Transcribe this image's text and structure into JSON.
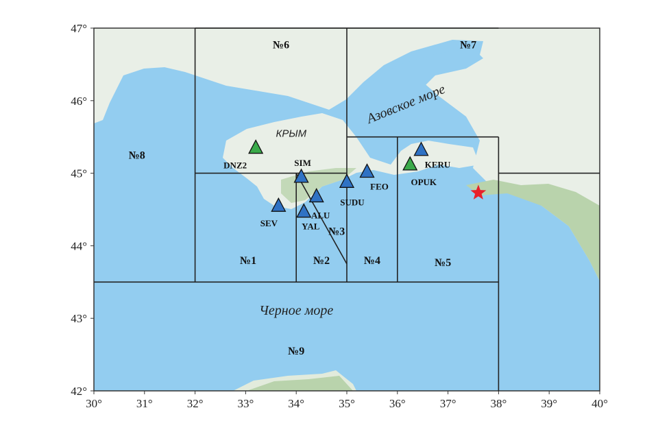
{
  "map": {
    "lon_range": [
      30,
      40
    ],
    "lat_range": [
      42,
      47
    ],
    "x_ticks": [
      "30°",
      "31°",
      "32°",
      "33°",
      "34°",
      "35°",
      "36°",
      "37°",
      "38°",
      "39°",
      "40°"
    ],
    "y_ticks": [
      "47°",
      "46°",
      "45°",
      "44°",
      "43°",
      "42°"
    ],
    "colors": {
      "water": "#93cdf0",
      "land": "#e9efe7",
      "mountains": "#b9d3ac",
      "station_blue": "#2f72c4",
      "station_green": "#3aaa4a",
      "epicenter": "#e8202a",
      "lines": "#222222"
    },
    "sea_labels": [
      {
        "text": "Азовское море",
        "lon": 36.2,
        "lat": 45.9,
        "rotate": -22
      },
      {
        "text": "Черное море",
        "lon": 34.0,
        "lat": 43.05,
        "rotate": 0
      }
    ],
    "region_label": {
      "text": "КРЫМ",
      "lon": 33.9,
      "lat": 45.5
    },
    "zones": [
      {
        "label": "№1",
        "lon": 33.05,
        "lat": 43.75
      },
      {
        "label": "№2",
        "lon": 34.5,
        "lat": 43.75
      },
      {
        "label": "№3",
        "lon": 34.8,
        "lat": 44.15
      },
      {
        "label": "№4",
        "lon": 35.5,
        "lat": 43.75
      },
      {
        "label": "№5",
        "lon": 36.9,
        "lat": 43.72
      },
      {
        "label": "№6",
        "lon": 33.7,
        "lat": 46.72
      },
      {
        "label": "№7",
        "lon": 37.4,
        "lat": 46.72
      },
      {
        "label": "№8",
        "lon": 30.85,
        "lat": 45.2
      },
      {
        "label": "№9",
        "lon": 34.0,
        "lat": 42.5
      }
    ],
    "zone_boundaries": [
      [
        [
          32,
          47
        ],
        [
          32,
          43.5
        ]
      ],
      [
        [
          35,
          47
        ],
        [
          35,
          43.5
        ]
      ],
      [
        [
          30,
          43.5
        ],
        [
          38,
          43.5
        ]
      ],
      [
        [
          32,
          45
        ],
        [
          35,
          45
        ]
      ],
      [
        [
          34,
          45
        ],
        [
          34,
          43.5
        ]
      ],
      [
        [
          34,
          45
        ],
        [
          35,
          43.75
        ]
      ],
      [
        [
          35,
          45.5
        ],
        [
          38,
          45.5
        ]
      ],
      [
        [
          36,
          45.5
        ],
        [
          36,
          43.5
        ]
      ],
      [
        [
          38,
          45.5
        ],
        [
          38,
          42
        ]
      ],
      [
        [
          38,
          45
        ],
        [
          40,
          45
        ]
      ],
      [
        [
          32,
          47
        ],
        [
          38,
          47
        ]
      ]
    ],
    "stations": [
      {
        "code": "DNZ2",
        "lon": 33.2,
        "lat": 45.35,
        "type": "green",
        "label_dx": -30,
        "label_dy": 30
      },
      {
        "code": "SIM",
        "lon": 34.1,
        "lat": 44.95,
        "type": "blue",
        "label_dx": 2,
        "label_dy": -16
      },
      {
        "code": "SEV",
        "lon": 33.65,
        "lat": 44.55,
        "type": "blue",
        "label_dx": -14,
        "label_dy": 30
      },
      {
        "code": "YAL",
        "lon": 34.15,
        "lat": 44.47,
        "type": "blue",
        "label_dx": 10,
        "label_dy": 26
      },
      {
        "code": "ALU",
        "lon": 34.4,
        "lat": 44.68,
        "type": "blue",
        "label_dx": 6,
        "label_dy": 32
      },
      {
        "code": "SUDU",
        "lon": 35.0,
        "lat": 44.88,
        "type": "blue",
        "label_dx": 8,
        "label_dy": 34
      },
      {
        "code": "FEO",
        "lon": 35.4,
        "lat": 45.02,
        "type": "blue",
        "label_dx": 18,
        "label_dy": 26
      },
      {
        "code": "KERU",
        "lon": 36.47,
        "lat": 45.32,
        "type": "blue",
        "label_dx": 24,
        "label_dy": 26
      },
      {
        "code": "OPUK",
        "lon": 36.25,
        "lat": 45.12,
        "type": "green",
        "label_dx": 20,
        "label_dy": 30
      }
    ],
    "epicenter": {
      "lon": 37.6,
      "lat": 44.73
    }
  }
}
